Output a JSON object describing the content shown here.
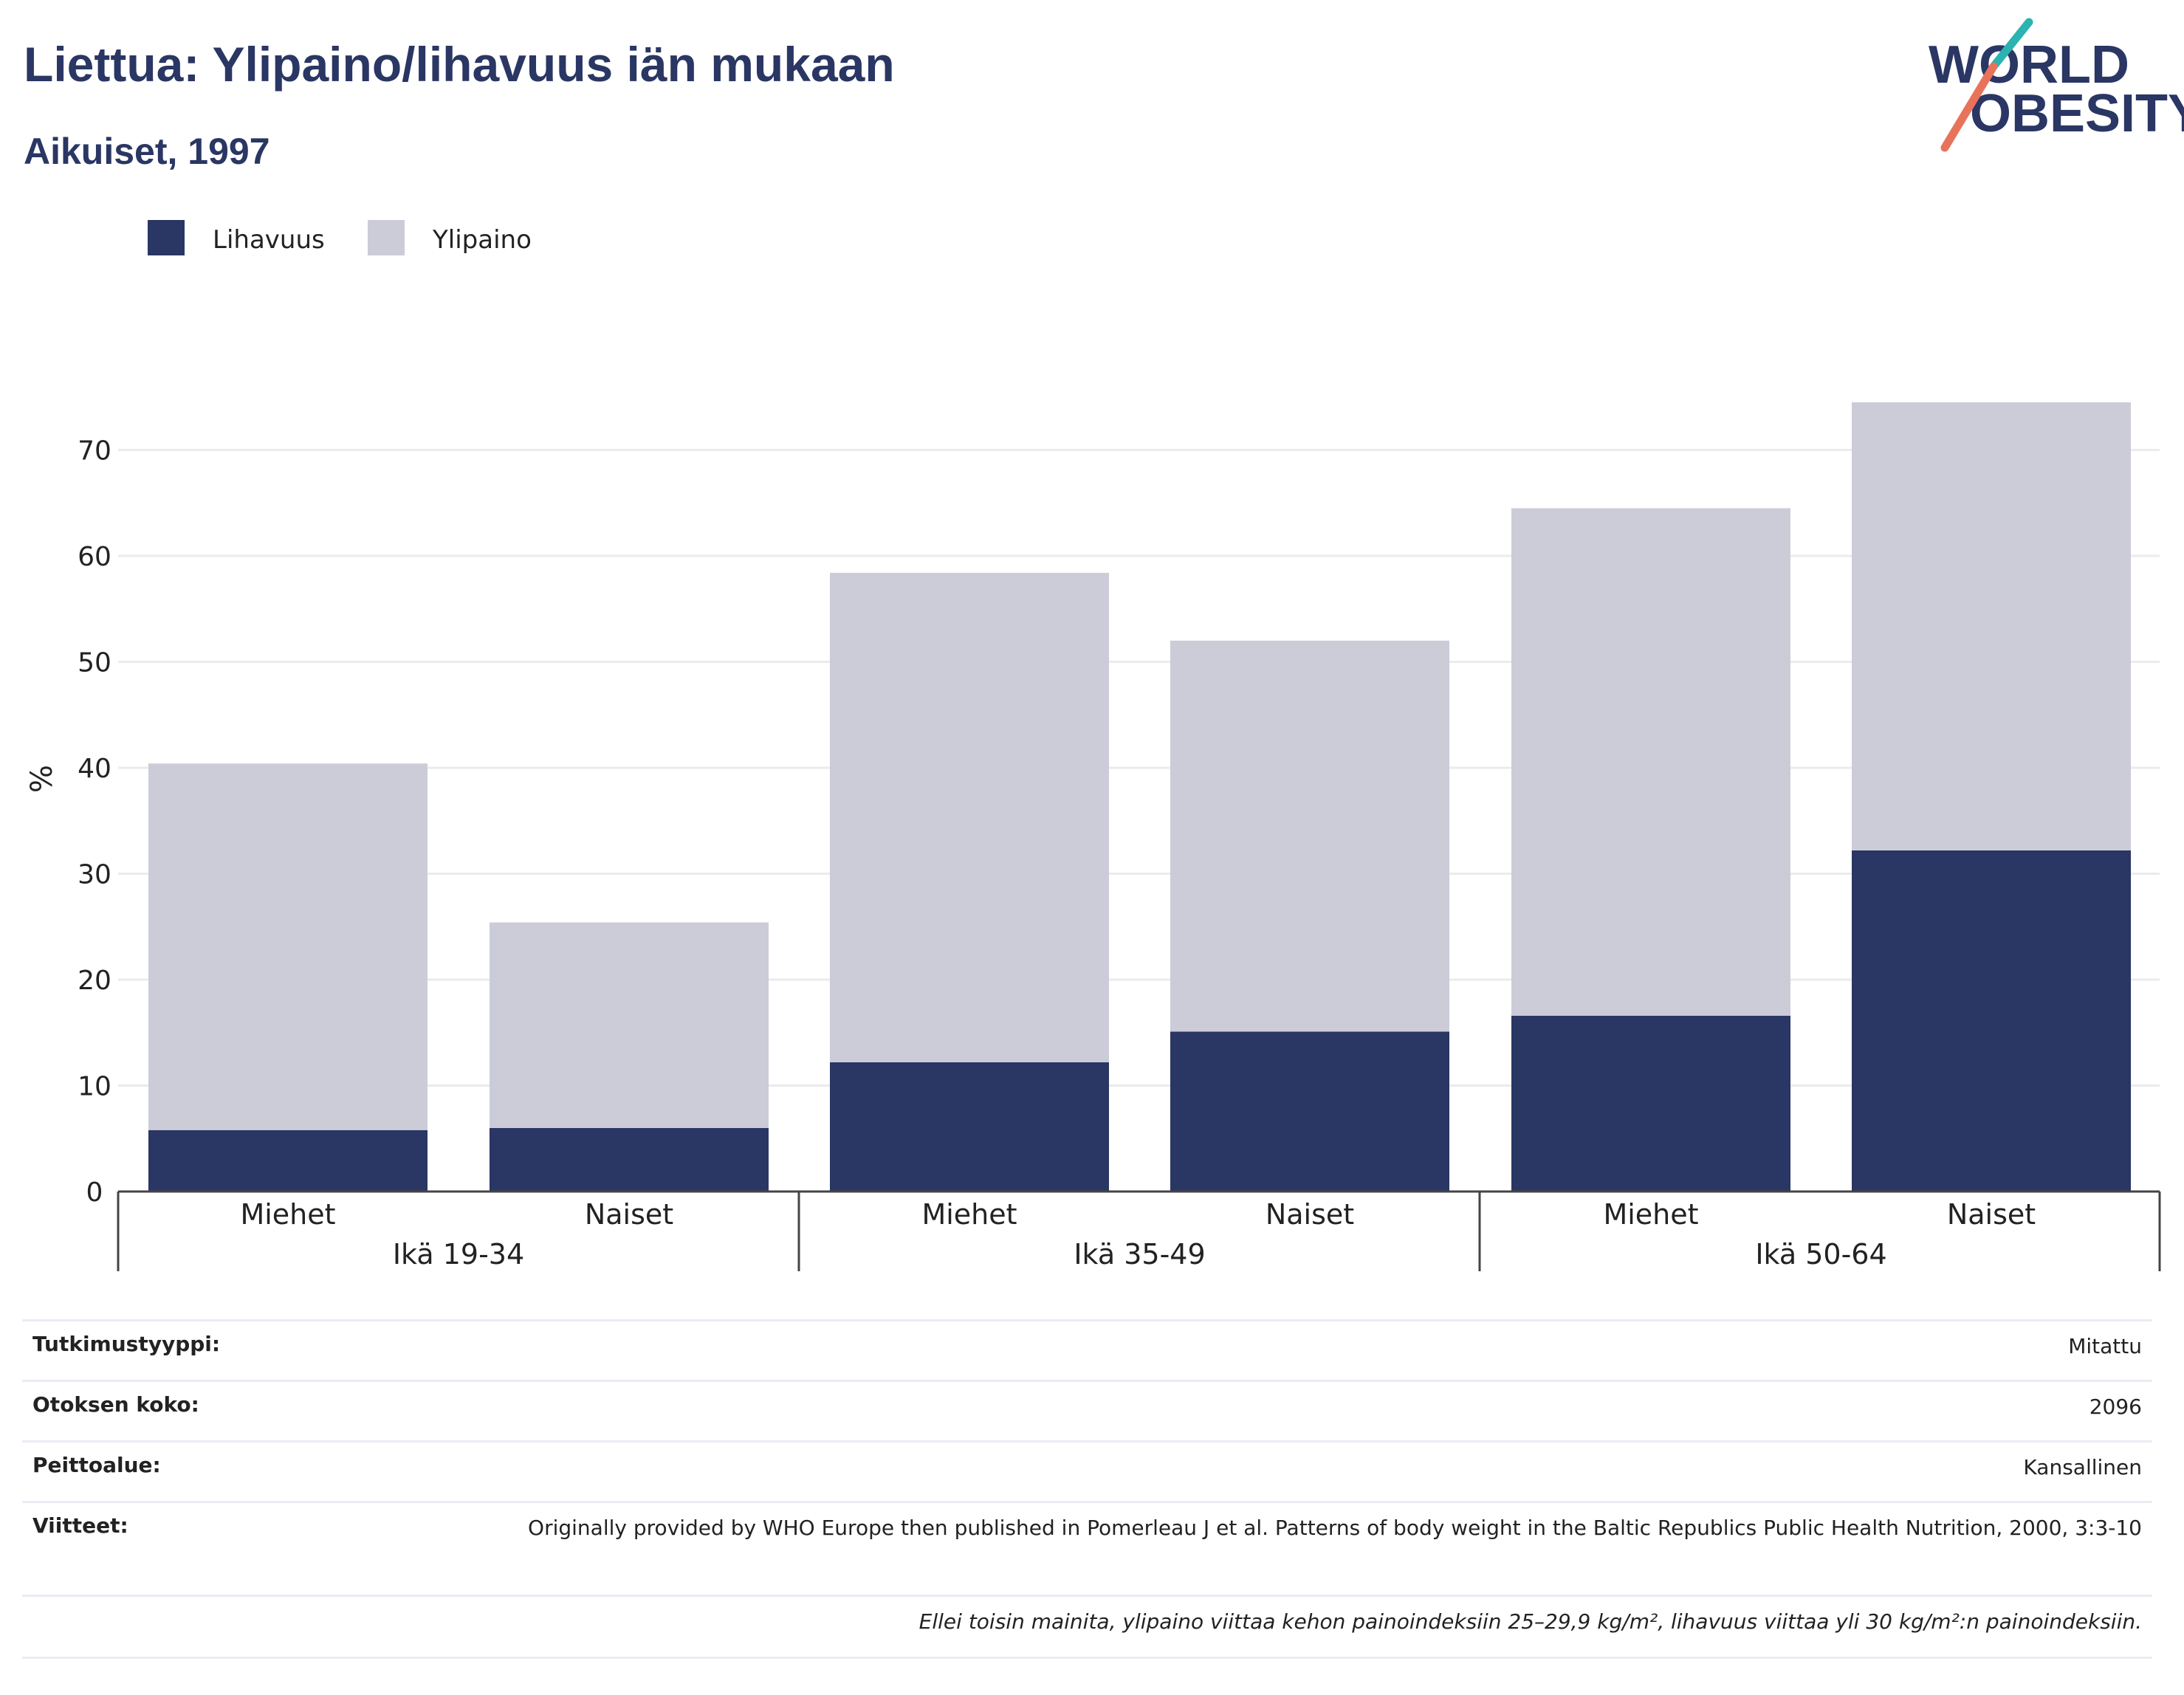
{
  "header": {
    "title": "Liettua: Ylipaino/lihavuus iän mukaan",
    "subtitle": "Aikuiset, 1997"
  },
  "logo": {
    "line1": "WORLD",
    "line2": "OBESITY"
  },
  "colors": {
    "obesity": "#2a3663",
    "overweight": "#cbccd8",
    "title": "#2a3663",
    "logo_teal": "#2bb3b1",
    "logo_coral": "#e8735a",
    "grid": "#ebebeb"
  },
  "chart_data": {
    "type": "bar",
    "stacked": true,
    "ylabel": "%",
    "ylim": [
      0,
      75
    ],
    "yticks": [
      0,
      10,
      20,
      30,
      40,
      50,
      60,
      70
    ],
    "grid": true,
    "legend_position": "top-left",
    "categories": [
      "Miehet",
      "Naiset",
      "Miehet",
      "Naiset",
      "Miehet",
      "Naiset"
    ],
    "groups": [
      {
        "label": "Ikä 19-34",
        "size": 2
      },
      {
        "label": "Ikä 35-49",
        "size": 2
      },
      {
        "label": "Ikä 50-64",
        "size": 2
      }
    ],
    "series": [
      {
        "name": "Lihavuus",
        "color": "#2a3663",
        "values": [
          5.8,
          6.0,
          12.2,
          15.1,
          16.6,
          32.2
        ]
      },
      {
        "name": "Ylipaino",
        "color": "#cbccd8",
        "values": [
          34.6,
          19.4,
          46.2,
          36.9,
          47.9,
          42.3
        ]
      }
    ]
  },
  "info": {
    "study_type_label": "Tutkimustyyppi:",
    "study_type_value": "Mitattu",
    "sample_label": "Otoksen koko:",
    "sample_value": "2096",
    "coverage_label": "Peittoalue:",
    "coverage_value": "Kansallinen",
    "references_label": "Viitteet:",
    "references_value": "Originally provided by WHO Europe then published in Pomerleau J et al. Patterns of body weight in the Baltic Republics Public Health Nutrition, 2000, 3:3-10",
    "note": "Ellei toisin mainita, ylipaino viittaa kehon painoindeksiin 25–29,9 kg/m², lihavuus viittaa yli 30 kg/m²:n painoindeksiin."
  }
}
